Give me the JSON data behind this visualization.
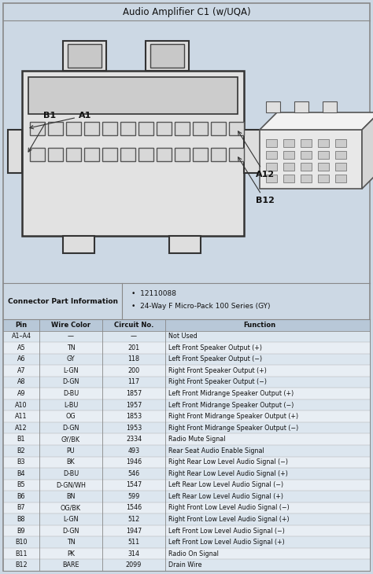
{
  "title": "Audio Amplifier C1 (w/UQA)",
  "bg_color": "#ccd8e4",
  "connector_info": [
    "12110088",
    "24-Way F Micro-Pack 100 Series (GY)"
  ],
  "table_headers": [
    "Pin",
    "Wire Color",
    "Circuit No.",
    "Function"
  ],
  "table_data": [
    [
      "A1–A4",
      "—",
      "—",
      "Not Used"
    ],
    [
      "A5",
      "TN",
      "201",
      "Left Front Speaker Output (+)"
    ],
    [
      "A6",
      "GY",
      "118",
      "Left Front Speaker Output (−)"
    ],
    [
      "A7",
      "L-GN",
      "200",
      "Right Front Speaker Output (+)"
    ],
    [
      "A8",
      "D-GN",
      "117",
      "Right Front Speaker Output (−)"
    ],
    [
      "A9",
      "D-BU",
      "1857",
      "Left Front Midrange Speaker Output (+)"
    ],
    [
      "A10",
      "L-BU",
      "1957",
      "Left Front Midrange Speaker Output (−)"
    ],
    [
      "A11",
      "OG",
      "1853",
      "Right Front Midrange Speaker Output (+)"
    ],
    [
      "A12",
      "D-GN",
      "1953",
      "Right Front Midrange Speaker Output (−)"
    ],
    [
      "B1",
      "GY/BK",
      "2334",
      "Radio Mute Signal"
    ],
    [
      "B2",
      "PU",
      "493",
      "Rear Seat Audio Enable Signal"
    ],
    [
      "B3",
      "BK",
      "1946",
      "Right Rear Low Level Audio Signal (−)"
    ],
    [
      "B4",
      "D-BU",
      "546",
      "Right Rear Low Level Audio Signal (+)"
    ],
    [
      "B5",
      "D-GN/WH",
      "1547",
      "Left Rear Low Level Audio Signal (−)"
    ],
    [
      "B6",
      "BN",
      "599",
      "Left Rear Low Level Audio Signal (+)"
    ],
    [
      "B7",
      "OG/BK",
      "1546",
      "Right Front Low Level Audio Signal (−)"
    ],
    [
      "B8",
      "L-GN",
      "512",
      "Right Front Low Level Audio Signal (+)"
    ],
    [
      "B9",
      "D-GN",
      "1947",
      "Left Front Low Level Audio Signal (−)"
    ],
    [
      "B10",
      "TN",
      "511",
      "Left Front Low Level Audio Signal (+)"
    ],
    [
      "B11",
      "PK",
      "314",
      "Radio On Signal"
    ],
    [
      "B12",
      "BARE",
      "2099",
      "Drain Wire"
    ]
  ]
}
